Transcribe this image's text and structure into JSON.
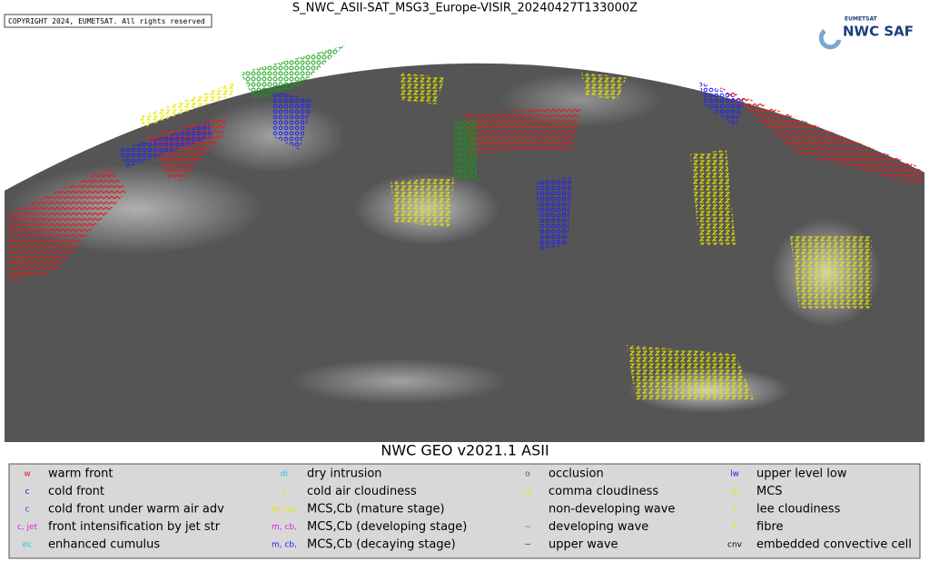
{
  "header": {
    "title": "S_NWC_ASII-SAT_MSG3_Europe-VISIR_20240427T133000Z",
    "copyright": "COPYRIGHT 2024, EUMETSAT. All rights reserved",
    "logo_small": "EUMETSAT",
    "logo": "NWC SAF"
  },
  "footer_title": "NWC GEO v2021.1 ASII",
  "legend": {
    "columns": [
      [
        {
          "symbol": "w",
          "color": "#e02020",
          "label": "warm front"
        },
        {
          "symbol": "c",
          "color": "#1a1aff",
          "label": "cold front"
        },
        {
          "symbol": "c",
          "color": "#8a2be2",
          "label": "cold front under warm air adv"
        },
        {
          "symbol": "c, jet",
          "color": "#e020e0",
          "label": "front intensification by jet str"
        },
        {
          "symbol": "ec",
          "color": "#20c8d8",
          "label": "enhanced cumulus"
        }
      ],
      [
        {
          "symbol": "di",
          "color": "#20c8d8",
          "label": "dry intrusion"
        },
        {
          "symbol": "z",
          "color": "#e8e800",
          "label": "cold air cloudiness"
        },
        {
          "symbol": "m, cb,",
          "color": "#e8e800",
          "label": "MCS,Cb (mature stage)"
        },
        {
          "symbol": "m, cb,",
          "color": "#e020e0",
          "label": "MCS,Cb (developing stage)"
        },
        {
          "symbol": "m, cb,",
          "color": "#1a1aff",
          "label": "MCS,Cb (decaying stage)"
        }
      ],
      [
        {
          "symbol": "o",
          "color": "#109010",
          "label": "occlusion"
        },
        {
          "symbol": "co",
          "color": "#e8e800",
          "label": "comma cloudiness"
        },
        {
          "symbol": "~",
          "color": "#e8e800",
          "label": "non-developing wave"
        },
        {
          "symbol": "~",
          "color": "#e020e0",
          "label": "developing wave"
        },
        {
          "symbol": "~",
          "color": "#1a1aff",
          "label": "upper wave"
        }
      ],
      [
        {
          "symbol": "lw",
          "color": "#1a1aff",
          "label": "upper level low"
        },
        {
          "symbol": "m",
          "color": "#e8e800",
          "label": "MCS"
        },
        {
          "symbol": "L",
          "color": "#e8e800",
          "label": "lee cloudiness"
        },
        {
          "symbol": "F",
          "color": "#e8e800",
          "label": "fibre"
        },
        {
          "symbol": "cnv",
          "color": "#000000",
          "label": "embedded convective cell"
        }
      ]
    ]
  }
}
